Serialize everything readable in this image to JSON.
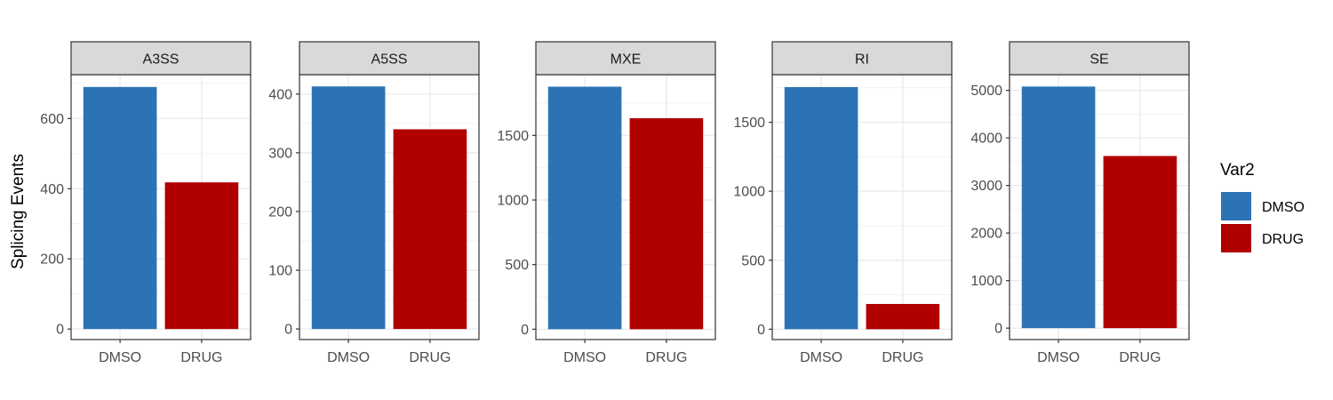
{
  "chart_data": {
    "type": "bar",
    "ylabel": "Splicing Events",
    "categories": [
      "DMSO",
      "DRUG"
    ],
    "colors": {
      "DMSO": "#2B73B5",
      "DRUG": "#B00000"
    },
    "legend": {
      "title": "Var2",
      "placement": "right",
      "entries": [
        "DMSO",
        "DRUG"
      ]
    },
    "grid": true,
    "facets": [
      {
        "name": "A3SS",
        "values": [
          690,
          418
        ],
        "ylim": [
          -30,
          725
        ],
        "ticks": [
          0,
          200,
          400,
          600
        ]
      },
      {
        "name": "A5SS",
        "values": [
          413,
          340
        ],
        "ylim": [
          -18,
          433
        ],
        "ticks": [
          0,
          100,
          200,
          300,
          400
        ]
      },
      {
        "name": "MXE",
        "values": [
          1877,
          1633
        ],
        "ylim": [
          -80,
          1970
        ],
        "ticks": [
          0,
          500,
          1000,
          1500
        ]
      },
      {
        "name": "RI",
        "values": [
          1755,
          183
        ],
        "ylim": [
          -75,
          1845
        ],
        "ticks": [
          0,
          500,
          1000,
          1500
        ]
      },
      {
        "name": "SE",
        "values": [
          5080,
          3620
        ],
        "ylim": [
          -240,
          5330
        ],
        "ticks": [
          0,
          1000,
          2000,
          3000,
          4000,
          5000
        ]
      }
    ]
  }
}
